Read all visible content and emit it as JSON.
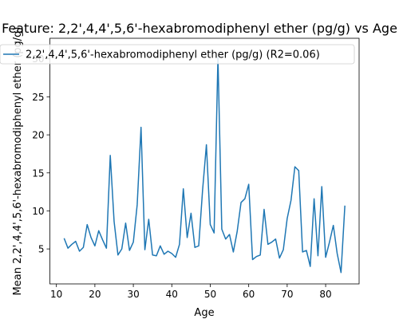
{
  "chart_data": {
    "type": "line",
    "title": "Feature: 2,2',4,4',5,6'-hexabromodiphenyl ether (pg/g) vs Age",
    "xlabel": "Age",
    "ylabel": "Mean 2,2',4,4',5,6'-hexabromodiphenyl ether (pg/g)",
    "xlim": [
      8.3,
      88.7
    ],
    "ylim": [
      0.4,
      32.7
    ],
    "xticks": [
      10,
      20,
      30,
      40,
      50,
      60,
      70,
      80
    ],
    "yticks": [
      5,
      10,
      15,
      20,
      25,
      30
    ],
    "grid": false,
    "legend_position": "top-left",
    "series": [
      {
        "name": "2,2',4,4',5,6'-hexabromodiphenyl ether (pg/g) (R2=0.06)",
        "color": "#1f77b4",
        "x": [
          12,
          13,
          14,
          15,
          16,
          17,
          18,
          19,
          20,
          21,
          22,
          23,
          24,
          25,
          26,
          27,
          28,
          29,
          30,
          31,
          32,
          33,
          34,
          35,
          36,
          37,
          38,
          39,
          40,
          41,
          42,
          43,
          44,
          45,
          46,
          47,
          48,
          49,
          50,
          51,
          52,
          53,
          54,
          55,
          56,
          57,
          58,
          59,
          60,
          61,
          62,
          63,
          64,
          65,
          66,
          67,
          68,
          69,
          70,
          71,
          72,
          73,
          74,
          75,
          76,
          77,
          78,
          79,
          80,
          81,
          82,
          83,
          84,
          85
        ],
        "y": [
          6.4,
          5.1,
          5.6,
          6.0,
          4.7,
          5.2,
          8.2,
          6.5,
          5.4,
          7.4,
          6.2,
          5.1,
          17.3,
          8.6,
          4.2,
          5.0,
          8.4,
          4.8,
          5.9,
          10.8,
          21.0,
          4.9,
          8.9,
          4.2,
          4.1,
          5.4,
          4.3,
          4.7,
          4.4,
          3.9,
          5.6,
          12.9,
          6.5,
          9.7,
          5.2,
          5.4,
          12.7,
          18.7,
          8.2,
          7.1,
          30.2,
          7.6,
          6.3,
          6.9,
          4.6,
          7.3,
          11.1,
          11.6,
          13.5,
          3.6,
          4.0,
          4.2,
          10.2,
          5.6,
          5.9,
          6.3,
          3.8,
          4.9,
          9.0,
          11.4,
          15.8,
          15.3,
          4.6,
          4.8,
          2.7,
          11.6,
          4.1,
          13.2,
          3.9,
          5.9,
          8.1,
          4.4,
          1.9,
          10.7
        ]
      }
    ]
  }
}
